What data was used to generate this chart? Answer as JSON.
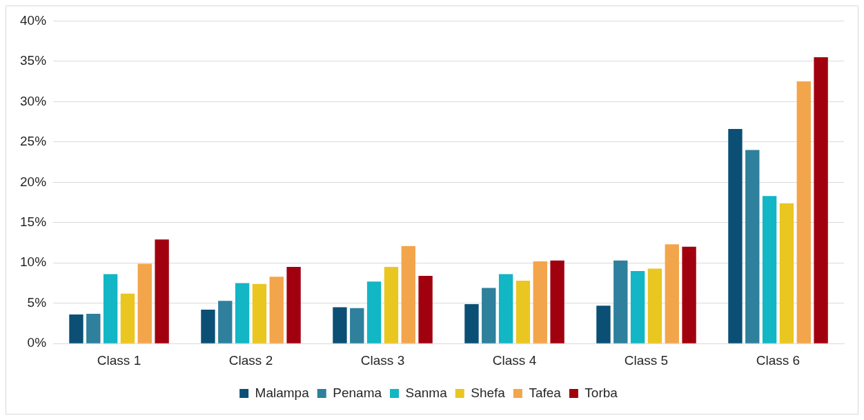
{
  "chart_data": {
    "type": "bar",
    "categories": [
      "Class 1",
      "Class 2",
      "Class 3",
      "Class 4",
      "Class 5",
      "Class 6"
    ],
    "series": [
      {
        "name": "Malampa",
        "color": "#0b4f75",
        "values": [
          3.6,
          4.2,
          4.5,
          4.9,
          4.7,
          26.6
        ]
      },
      {
        "name": "Penama",
        "color": "#2e809c",
        "values": [
          3.7,
          5.3,
          4.4,
          6.9,
          10.3,
          24.0
        ]
      },
      {
        "name": "Sanma",
        "color": "#12b6c4",
        "values": [
          8.6,
          7.5,
          7.7,
          8.6,
          9.0,
          18.3
        ]
      },
      {
        "name": "Shefa",
        "color": "#eac621",
        "values": [
          6.2,
          7.4,
          9.5,
          7.8,
          9.3,
          17.4
        ]
      },
      {
        "name": "Tafea",
        "color": "#f3a54b",
        "values": [
          9.9,
          8.3,
          12.1,
          10.2,
          12.3,
          32.5
        ]
      },
      {
        "name": "Torba",
        "color": "#a1000f",
        "values": [
          12.9,
          9.5,
          8.4,
          10.3,
          12.0,
          35.5
        ]
      }
    ],
    "ylim": [
      0,
      40
    ],
    "yticks": [
      {
        "value": 0,
        "label": "0%"
      },
      {
        "value": 5,
        "label": "5%"
      },
      {
        "value": 10,
        "label": "10%"
      },
      {
        "value": 15,
        "label": "15%"
      },
      {
        "value": 20,
        "label": "20%"
      },
      {
        "value": 25,
        "label": "25%"
      },
      {
        "value": 30,
        "label": "30%"
      },
      {
        "value": 35,
        "label": "35%"
      },
      {
        "value": 40,
        "label": "40%"
      }
    ],
    "grid": "y",
    "legend": "bottom"
  }
}
